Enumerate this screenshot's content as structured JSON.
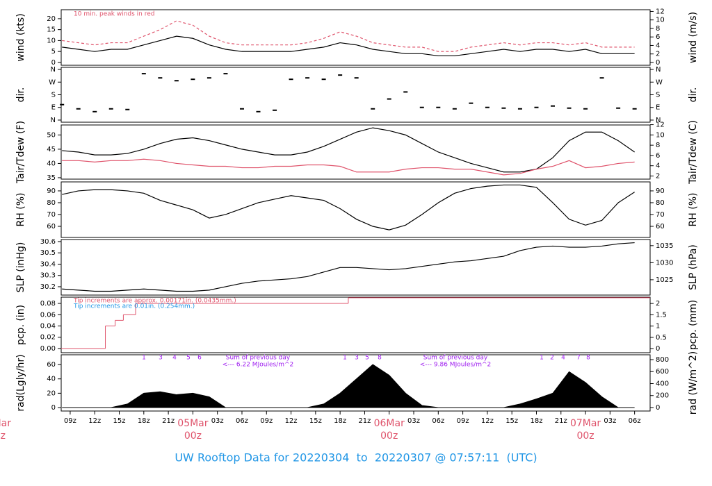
{
  "time_axis": {
    "x": [
      8,
      10,
      12,
      14,
      16,
      18,
      20,
      22,
      24,
      26,
      28,
      30,
      32,
      34,
      36,
      38,
      40,
      42,
      44,
      46,
      48,
      50,
      52,
      54,
      56,
      58,
      60,
      62,
      64,
      66,
      68,
      70,
      72,
      74,
      76,
      78
    ],
    "xlim": [
      7.9,
      79.9
    ],
    "xticks": [
      {
        "value": 9,
        "label": "09z"
      },
      {
        "value": 12,
        "label": "12z"
      },
      {
        "value": 15,
        "label": "15z"
      },
      {
        "value": 18,
        "label": "18z"
      },
      {
        "value": 21,
        "label": "21z"
      },
      {
        "value": 27,
        "label": "03z"
      },
      {
        "value": 30,
        "label": "06z"
      },
      {
        "value": 33,
        "label": "09z"
      },
      {
        "value": 36,
        "label": "12z"
      },
      {
        "value": 39,
        "label": "15z"
      },
      {
        "value": 42,
        "label": "18z"
      },
      {
        "value": 45,
        "label": "21z"
      },
      {
        "value": 51,
        "label": "03z"
      },
      {
        "value": 54,
        "label": "06z"
      },
      {
        "value": 57,
        "label": "09z"
      },
      {
        "value": 60,
        "label": "12z"
      },
      {
        "value": 63,
        "label": "15z"
      },
      {
        "value": 66,
        "label": "18z"
      },
      {
        "value": 69,
        "label": "21z"
      },
      {
        "value": 75,
        "label": "03z"
      },
      {
        "value": 78,
        "label": "06z"
      }
    ],
    "day_labels": [
      {
        "value": 0,
        "label": "Mar",
        "sublabel": "z"
      },
      {
        "value": 24,
        "label": "05Mar",
        "sublabel": "00z"
      },
      {
        "value": 48,
        "label": "06Mar",
        "sublabel": "00z"
      },
      {
        "value": 72,
        "label": "07Mar",
        "sublabel": "00z"
      }
    ]
  },
  "chart_data": [
    {
      "type": "line",
      "ylabel": "wind (kts)",
      "y2label": "wind (m/s)",
      "annotation": "10 min. peak winds in red",
      "ylim": [
        -1.3,
        24.1
      ],
      "yticks": [
        0,
        5,
        10,
        15,
        20
      ],
      "y2lim": [
        -0.66,
        12.4
      ],
      "y2ticks": [
        0,
        2,
        4,
        6,
        8,
        10,
        12
      ],
      "series": [
        {
          "color": "#000000",
          "style": "solid",
          "values": [
            7,
            6,
            5,
            6,
            6,
            8,
            10,
            12,
            11,
            8,
            6,
            5,
            5,
            5,
            5,
            6,
            7,
            9,
            8,
            6,
            5,
            4,
            4,
            3,
            3,
            4,
            5,
            6,
            5,
            6,
            6,
            5,
            6,
            4,
            4,
            4
          ]
        },
        {
          "color": "#df536b",
          "style": "dashed",
          "values": [
            10,
            9,
            8,
            9,
            9,
            12,
            15,
            19,
            17,
            12,
            9,
            8,
            8,
            8,
            8,
            9,
            11,
            14,
            12,
            9,
            8,
            7,
            7,
            5,
            5,
            7,
            8,
            9,
            8,
            9,
            9,
            8,
            9,
            7,
            7,
            7
          ]
        }
      ]
    },
    {
      "type": "scatter",
      "ylabel": "dir.",
      "y2label": "dir.",
      "ylim": [
        -15,
        375
      ],
      "yticks": [
        {
          "value": 0,
          "label": "N"
        },
        {
          "value": 90,
          "label": "E"
        },
        {
          "value": 180,
          "label": "S"
        },
        {
          "value": 270,
          "label": "W"
        },
        {
          "value": 360,
          "label": "N"
        }
      ],
      "y2lim": [
        -15,
        375
      ],
      "y2ticks": [
        {
          "value": 0,
          "label": "N"
        },
        {
          "value": 90,
          "label": "E"
        },
        {
          "value": 180,
          "label": "S"
        },
        {
          "value": 270,
          "label": "W"
        },
        {
          "value": 360,
          "label": "N"
        }
      ],
      "series": [
        {
          "color": "#000000",
          "values": [
            110,
            80,
            60,
            80,
            75,
            330,
            300,
            280,
            290,
            300,
            330,
            80,
            60,
            70,
            290,
            300,
            290,
            320,
            300,
            80,
            150,
            200,
            90,
            90,
            80,
            120,
            90,
            85,
            80,
            90,
            100,
            85,
            80,
            300,
            85,
            80
          ]
        }
      ]
    },
    {
      "type": "line",
      "ylabel": "Tair/Tdew (F)",
      "y2label": "Tair/Tdew (C)",
      "ylim": [
        34.5,
        53.5
      ],
      "yticks": [
        35,
        40,
        45,
        50
      ],
      "y2lim": [
        1.39,
        11.94
      ],
      "y2ticks": [
        2,
        4,
        6,
        8,
        10,
        12
      ],
      "series": [
        {
          "color": "#000000",
          "style": "solid",
          "values": [
            44.5,
            44,
            43,
            43,
            43.5,
            45,
            47,
            48.5,
            49,
            48,
            46.5,
            45,
            44,
            43,
            43,
            44,
            46,
            48.5,
            51,
            52.5,
            51.5,
            50,
            47,
            44,
            42,
            40,
            38.5,
            37,
            37,
            38,
            42,
            48,
            51,
            51,
            48,
            44
          ]
        },
        {
          "color": "#df536b",
          "style": "solid",
          "values": [
            41,
            41,
            40.5,
            41,
            41,
            41.5,
            41,
            40,
            39.5,
            39,
            39,
            38.5,
            38.5,
            39,
            39,
            39.5,
            39.5,
            39,
            37,
            37,
            37,
            38,
            38.5,
            38.5,
            38,
            38,
            37,
            36,
            36.5,
            38,
            39,
            41,
            38.5,
            39,
            40,
            40.5
          ]
        }
      ]
    },
    {
      "type": "line",
      "ylabel": "RH (%)",
      "y2label": "RH (%)",
      "ylim": [
        50.6,
        97.6
      ],
      "yticks": [
        60,
        70,
        80,
        90
      ],
      "y2lim": [
        50.6,
        97.6
      ],
      "y2ticks": [
        60,
        70,
        80,
        90
      ],
      "series": [
        {
          "color": "#000000",
          "style": "solid",
          "values": [
            87,
            90,
            91,
            91,
            90,
            88,
            82,
            78,
            74,
            67,
            70,
            75,
            80,
            83,
            86,
            84,
            82,
            75,
            66,
            60,
            57,
            61,
            70,
            80,
            88,
            92,
            94,
            95,
            95,
            93,
            80,
            66,
            61,
            65,
            80,
            89
          ]
        }
      ]
    },
    {
      "type": "line",
      "ylabel": "SLP (inHg)",
      "y2label": "SLP (hPa)",
      "ylim": [
        30.126,
        30.618
      ],
      "yticks": [
        30.2,
        30.3,
        30.4,
        30.5,
        30.6
      ],
      "y2lim": [
        1020.5,
        1036.8
      ],
      "y2ticks": [
        1025,
        1030,
        1035
      ],
      "series": [
        {
          "color": "#000000",
          "style": "solid",
          "values": [
            30.18,
            30.17,
            30.16,
            30.16,
            30.17,
            30.18,
            30.17,
            30.16,
            30.16,
            30.17,
            30.2,
            30.23,
            30.25,
            30.26,
            30.27,
            30.29,
            30.33,
            30.37,
            30.37,
            30.36,
            30.35,
            30.36,
            30.38,
            30.4,
            30.42,
            30.43,
            30.45,
            30.47,
            30.52,
            30.55,
            30.56,
            30.55,
            30.55,
            30.56,
            30.58,
            30.59
          ]
        }
      ]
    },
    {
      "type": "step",
      "ylabel": "pcp. (in)",
      "y2label": "pcp. (mm)",
      "annotations": [
        {
          "text": "Tip increments are approx. 0.00171in. (0.0435mm.)",
          "color": "#df536b"
        },
        {
          "text": "Tip increments are 0.01in. (0.254mm.)",
          "color": "#2297e6"
        }
      ],
      "ylim": [
        -0.0074,
        0.0911
      ],
      "yticks": [
        {
          "value": 0,
          "label": "0.00"
        },
        0.02,
        0.04,
        0.06,
        0.08
      ],
      "y2lim": [
        -0.18,
        2.28
      ],
      "y2ticks": [
        0,
        0.5,
        1,
        1.5,
        2
      ],
      "series": [
        {
          "color": "#df536b",
          "x": [
            7.9,
            13.3,
            14.5,
            15.5,
            17.0,
            43.0,
            79.9
          ],
          "values": [
            0,
            0.04,
            0.05,
            0.06,
            0.08,
            0.09,
            0.09
          ]
        }
      ]
    },
    {
      "type": "area",
      "ylabel": "rad(Lgly/hr)",
      "y2label": "rad (W/m^2)",
      "day_numbers": [
        "1",
        "3",
        "4",
        "5",
        "6",
        "1",
        "3",
        "5",
        "8",
        "1",
        "2",
        "4",
        "7",
        "8"
      ],
      "sums": [
        {
          "title": "Sum of previous day",
          "text": "<--- 6.22 MJoules/m^2"
        },
        {
          "title": "Sum of previous day",
          "text": "<--- 9.86 MJoules/m^2"
        }
      ],
      "ylim": [
        -4.8,
        73.6
      ],
      "yticks": [
        0,
        20,
        40,
        60
      ],
      "y2lim": [
        -58,
        881
      ],
      "y2ticks": [
        0,
        200,
        400,
        600,
        800
      ],
      "series": [
        {
          "color": "#000000",
          "values": [
            0,
            0,
            0,
            0,
            5,
            20,
            22,
            18,
            20,
            15,
            0,
            0,
            0,
            0,
            0,
            0,
            5,
            20,
            40,
            60,
            45,
            20,
            3,
            0,
            0,
            0,
            0,
            0,
            5,
            12,
            20,
            50,
            35,
            15,
            0,
            0
          ]
        }
      ]
    }
  ],
  "footer": "UW Rooftop Data for 20220304  to  20220307 @ 07:57:11  (UTC)"
}
